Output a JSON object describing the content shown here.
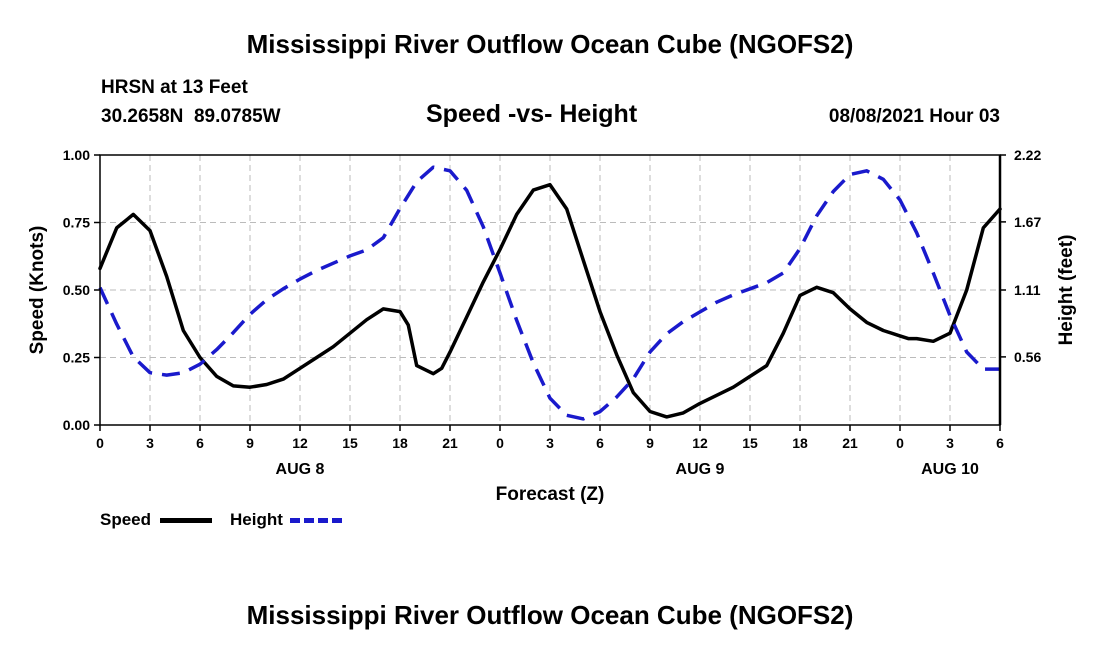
{
  "header": {
    "title_top": "Mississippi River Outflow Ocean Cube (NGOFS2)",
    "station": "HRSN at 13 Feet",
    "location": "30.2658N  89.0785W",
    "subtitle": "Speed -vs- Height",
    "datetime": "08/08/2021 Hour 03",
    "title_bottom": "Mississippi River Outflow Ocean Cube (NGOFS2)"
  },
  "legend": {
    "speed_label": "Speed",
    "height_label": "Height",
    "speed_color": "#000000",
    "height_color": "#1a1acc"
  },
  "chart_data": {
    "type": "line",
    "xlabel": "Forecast (Z)",
    "ylabel": "Speed (Knots)",
    "y2label": "Height (feet)",
    "xlim": [
      0,
      54
    ],
    "ylim": [
      0,
      1.0
    ],
    "y2lim": [
      0,
      2.22
    ],
    "x_ticks": [
      0,
      3,
      6,
      9,
      12,
      15,
      18,
      21,
      24,
      27,
      30,
      33,
      36,
      39,
      42,
      45,
      48,
      51,
      54
    ],
    "x_tick_labels": [
      "0",
      "3",
      "6",
      "9",
      "12",
      "15",
      "18",
      "21",
      "0",
      "3",
      "6",
      "9",
      "12",
      "15",
      "18",
      "21",
      "0",
      "3",
      "6"
    ],
    "date_labels": [
      {
        "x": 12,
        "label": "AUG 8"
      },
      {
        "x": 36,
        "label": "AUG 9"
      },
      {
        "x": 51,
        "label": "AUG 10"
      }
    ],
    "y_ticks": [
      0,
      0.25,
      0.5,
      0.75,
      1.0
    ],
    "y_tick_labels": [
      "0.00",
      "0.25",
      "0.50",
      "0.75",
      "1.00"
    ],
    "y2_ticks": [
      0.56,
      1.11,
      1.67,
      2.22
    ],
    "y2_tick_labels": [
      "0.56",
      "1.11",
      "1.67",
      "2.22"
    ],
    "grid": true,
    "series": [
      {
        "name": "Speed",
        "axis": "left",
        "style": "solid",
        "color": "#000000",
        "x": [
          0,
          1,
          2,
          3,
          4,
          5,
          6,
          7,
          8,
          9,
          10,
          11,
          12,
          13,
          14,
          15,
          16,
          17,
          18,
          18.5,
          19,
          20,
          20.5,
          21,
          22,
          23,
          24,
          25,
          26,
          27,
          28,
          29,
          30,
          31,
          32,
          33,
          34,
          35,
          36,
          37,
          38,
          39,
          40,
          41,
          42,
          43,
          44,
          45,
          46,
          47,
          48,
          48.5,
          49,
          50,
          51,
          52,
          53,
          54
        ],
        "values": [
          0.58,
          0.73,
          0.78,
          0.72,
          0.55,
          0.35,
          0.25,
          0.18,
          0.145,
          0.14,
          0.15,
          0.17,
          0.21,
          0.25,
          0.29,
          0.34,
          0.39,
          0.43,
          0.42,
          0.37,
          0.22,
          0.19,
          0.21,
          0.27,
          0.4,
          0.53,
          0.65,
          0.78,
          0.87,
          0.89,
          0.8,
          0.61,
          0.42,
          0.26,
          0.12,
          0.05,
          0.03,
          0.045,
          0.08,
          0.11,
          0.14,
          0.18,
          0.22,
          0.34,
          0.48,
          0.51,
          0.49,
          0.43,
          0.38,
          0.35,
          0.33,
          0.32,
          0.32,
          0.31,
          0.34,
          0.5,
          0.73,
          0.8
        ]
      },
      {
        "name": "Height",
        "axis": "right",
        "style": "dashed",
        "color": "#1a1acc",
        "x": [
          0,
          1,
          2,
          3,
          4,
          5,
          6,
          7,
          8,
          9,
          10,
          11,
          12,
          13,
          14,
          15,
          16,
          17,
          18,
          19,
          20,
          21,
          22,
          23,
          24,
          25,
          26,
          27,
          28,
          29,
          30,
          31,
          32,
          33,
          34,
          35,
          36,
          37,
          38,
          39,
          40,
          41,
          42,
          43,
          44,
          45,
          46,
          47,
          48,
          49,
          50,
          51,
          52,
          53,
          54
        ],
        "values": [
          1.13,
          0.83,
          0.56,
          0.43,
          0.41,
          0.43,
          0.5,
          0.62,
          0.76,
          0.91,
          1.03,
          1.12,
          1.2,
          1.27,
          1.33,
          1.39,
          1.44,
          1.54,
          1.78,
          2.0,
          2.12,
          2.09,
          1.93,
          1.63,
          1.25,
          0.86,
          0.51,
          0.22,
          0.08,
          0.05,
          0.11,
          0.23,
          0.38,
          0.6,
          0.75,
          0.85,
          0.93,
          1.01,
          1.07,
          1.12,
          1.17,
          1.25,
          1.45,
          1.72,
          1.92,
          2.06,
          2.09,
          2.02,
          1.85,
          1.58,
          1.25,
          0.9,
          0.6,
          0.46,
          0.46
        ]
      }
    ]
  }
}
